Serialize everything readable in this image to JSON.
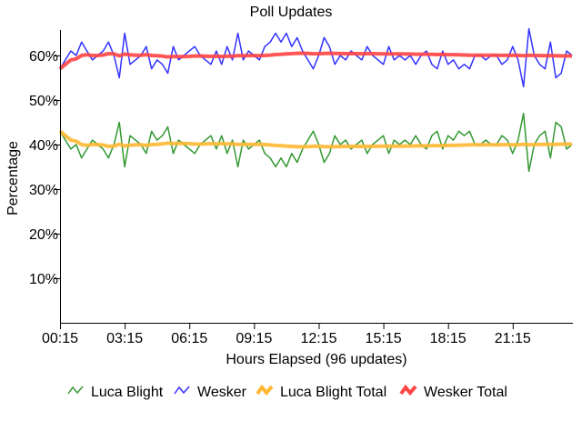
{
  "chart_data": {
    "type": "line",
    "title": "Poll Updates",
    "xlabel": "Hours Elapsed (96 updates)",
    "ylabel": "Percentage",
    "ylim": [
      0,
      66
    ],
    "yticks": [
      10,
      20,
      30,
      40,
      50,
      60
    ],
    "ytick_labels": [
      "10%",
      "20%",
      "30%",
      "40%",
      "50%",
      "60%"
    ],
    "xtick_labels": [
      "00:15",
      "03:15",
      "06:15",
      "09:15",
      "12:15",
      "15:15",
      "18:15",
      "21:15"
    ],
    "xtick_every": 12,
    "points": 96,
    "legend_position": "bottom",
    "series": [
      {
        "name": "Luca Blight",
        "color": "#339933",
        "kind": "raw",
        "values": [
          43,
          41,
          39,
          40,
          37,
          39,
          41,
          40,
          39,
          37,
          40,
          45,
          35,
          42,
          41,
          40,
          38,
          43,
          41,
          42,
          44,
          38,
          41,
          40,
          39,
          38,
          40,
          41,
          42,
          39,
          42,
          38,
          41,
          35,
          41,
          39,
          40,
          41,
          38,
          37,
          35,
          37,
          35,
          38,
          36,
          39,
          41,
          43,
          40,
          36,
          38,
          42,
          40,
          41,
          39,
          40,
          41,
          38,
          40,
          41,
          42,
          38,
          41,
          40,
          41,
          40,
          42,
          40,
          39,
          42,
          43,
          39,
          42,
          41,
          43,
          42,
          43,
          40,
          40,
          41,
          40,
          40,
          42,
          41,
          38,
          41,
          47,
          34,
          40,
          42,
          43,
          37,
          45,
          44,
          39,
          40
        ]
      },
      {
        "name": "Wesker",
        "color": "#3333ff",
        "kind": "raw",
        "values": [
          57,
          59,
          61,
          60,
          63,
          61,
          59,
          60,
          61,
          63,
          60,
          55,
          65,
          58,
          59,
          60,
          62,
          57,
          59,
          58,
          56,
          62,
          59,
          60,
          61,
          62,
          60,
          59,
          58,
          61,
          58,
          62,
          59,
          65,
          59,
          61,
          60,
          59,
          62,
          63,
          65,
          63,
          65,
          62,
          64,
          61,
          59,
          57,
          60,
          64,
          62,
          58,
          60,
          59,
          61,
          60,
          59,
          62,
          60,
          59,
          58,
          62,
          59,
          60,
          59,
          60,
          58,
          60,
          61,
          58,
          57,
          61,
          58,
          59,
          57,
          58,
          57,
          60,
          60,
          59,
          60,
          60,
          58,
          59,
          62,
          59,
          53,
          66,
          60,
          58,
          57,
          63,
          55,
          56,
          61,
          60
        ]
      },
      {
        "name": "Luca Blight Total",
        "color": "#ffb833",
        "kind": "cumulative-average-of",
        "source": "Luca Blight"
      },
      {
        "name": "Wesker Total",
        "color": "#ff4444",
        "kind": "cumulative-average-of",
        "source": "Wesker"
      }
    ]
  }
}
